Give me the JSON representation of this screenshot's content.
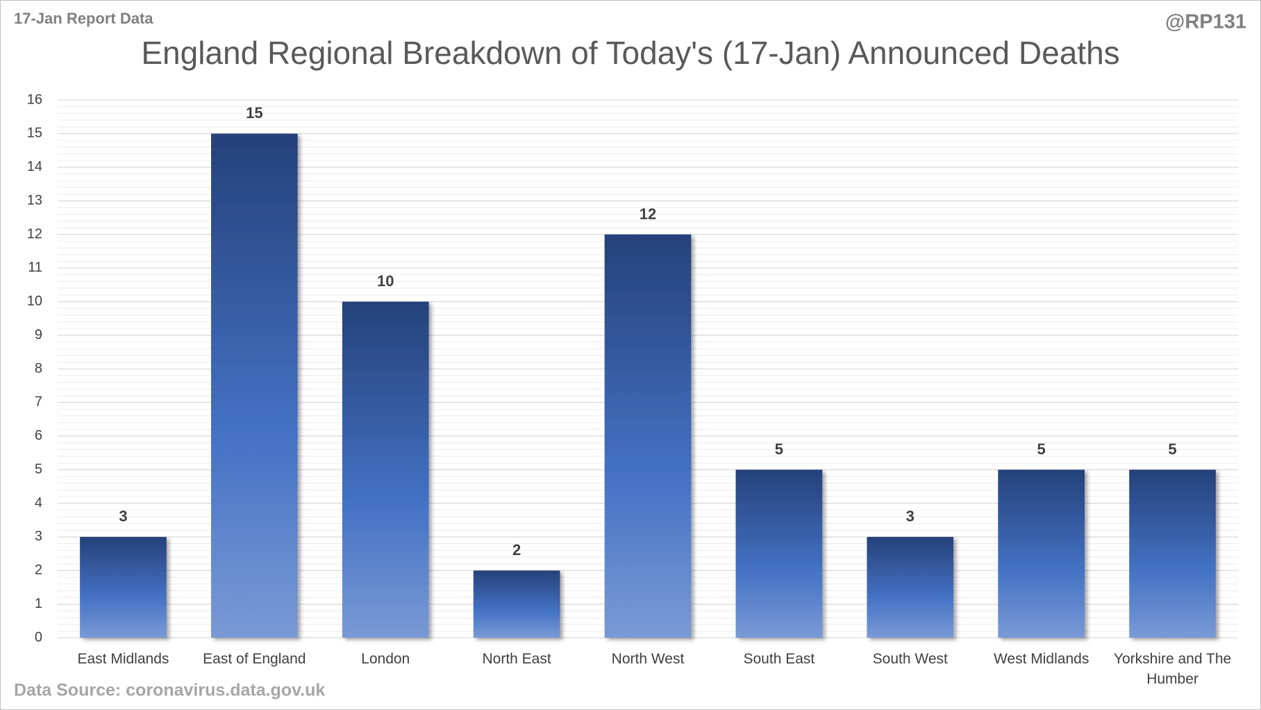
{
  "chart_data": {
    "type": "bar",
    "header_left": "17-Jan Report Data",
    "header_right": "@RP131",
    "title": "England Regional Breakdown of Today's (17-Jan) Announced Deaths",
    "source": "Data Source: coronavirus.data.gov.uk",
    "categories": [
      "East Midlands",
      "East of England",
      "London",
      "North East",
      "North West",
      "South East",
      "South West",
      "West Midlands",
      "Yorkshire and The Humber"
    ],
    "values": [
      3,
      15,
      10,
      2,
      12,
      5,
      3,
      5,
      5
    ],
    "color": "#4472c4",
    "ylim": [
      0,
      16
    ],
    "yticks": [
      0,
      1,
      2,
      3,
      4,
      5,
      6,
      7,
      8,
      9,
      10,
      11,
      12,
      13,
      14,
      15,
      16
    ],
    "grid": true
  }
}
